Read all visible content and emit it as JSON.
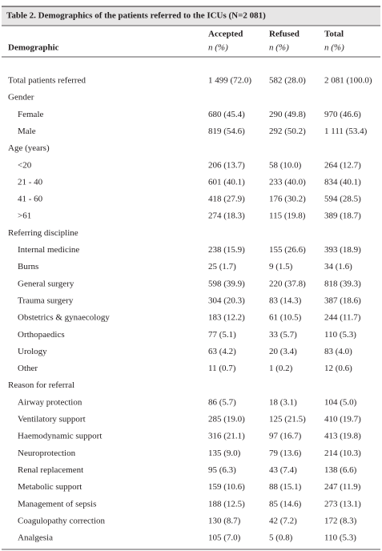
{
  "table": {
    "title": "Table 2. Demographics of the patients referred to the ICUs (N=2 081)",
    "header": {
      "demographic": "Demographic",
      "columns": [
        {
          "name": "Accepted",
          "unit": "n (%)"
        },
        {
          "name": "Refused",
          "unit": "n (%)"
        },
        {
          "name": "Total",
          "unit": "n (%)"
        }
      ]
    },
    "total": [
      "Total patients referred",
      "1 499 (72.0)",
      "582 (28.0)",
      "2 081 (100.0)"
    ],
    "sections": [
      {
        "heading": "Gender",
        "rows": [
          [
            "Female",
            "680 (45.4)",
            "290 (49.8)",
            "970 (46.6)"
          ],
          [
            "Male",
            "819 (54.6)",
            "292 (50.2)",
            "1 111 (53.4)"
          ]
        ]
      },
      {
        "heading": "Age (years)",
        "rows": [
          [
            "<20",
            "206 (13.7)",
            "58 (10.0)",
            "264 (12.7)"
          ],
          [
            "21 - 40",
            "601 (40.1)",
            "233 (40.0)",
            "834 (40.1)"
          ],
          [
            "41 - 60",
            "418 (27.9)",
            "176 (30.2)",
            "594 (28.5)"
          ],
          [
            ">61",
            "274 (18.3)",
            "115 (19.8)",
            "389 (18.7)"
          ]
        ]
      },
      {
        "heading": "Referring discipline",
        "rows": [
          [
            "Internal medicine",
            "238 (15.9)",
            "155 (26.6)",
            "393 (18.9)"
          ],
          [
            "Burns",
            "25 (1.7)",
            "9 (1.5)",
            "34 (1.6)"
          ],
          [
            "General surgery",
            "598 (39.9)",
            "220 (37.8)",
            "818 (39.3)"
          ],
          [
            "Trauma surgery",
            "304 (20.3)",
            "83 (14.3)",
            "387 (18.6)"
          ],
          [
            "Obstetrics & gynaecology",
            "183 (12.2)",
            "61 (10.5)",
            "244 (11.7)"
          ],
          [
            "Orthopaedics",
            "77 (5.1)",
            "33 (5.7)",
            "110 (5.3)"
          ],
          [
            "Urology",
            "63 (4.2)",
            "20 (3.4)",
            "83 (4.0)"
          ],
          [
            "Other",
            "11 (0.7)",
            "1 (0.2)",
            "12 (0.6)"
          ]
        ]
      },
      {
        "heading": "Reason for referral",
        "rows": [
          [
            "Airway protection",
            "86 (5.7)",
            "18 (3.1)",
            "104 (5.0)"
          ],
          [
            "Ventilatory support",
            "285 (19.0)",
            "125 (21.5)",
            "410 (19.7)"
          ],
          [
            "Haemodynamic support",
            "316 (21.1)",
            "97 (16.7)",
            "413 (19.8)"
          ],
          [
            "Neuroprotection",
            "135 (9.0)",
            "79 (13.6)",
            "214 (10.3)"
          ],
          [
            "Renal replacement",
            "95 (6.3)",
            "43 (7.4)",
            "138 (6.6)"
          ],
          [
            "Metabolic support",
            "159 (10.6)",
            "88 (15.1)",
            "247 (11.9)"
          ],
          [
            "Management of sepsis",
            "188 (12.5)",
            "85 (14.6)",
            "273 (13.1)"
          ],
          [
            "Coagulopathy correction",
            "130 (8.7)",
            "42 (7.2)",
            "172 (8.3)"
          ],
          [
            "Analgesia",
            "105 (7.0)",
            "5 (0.8)",
            "110 (5.3)"
          ]
        ]
      }
    ]
  }
}
